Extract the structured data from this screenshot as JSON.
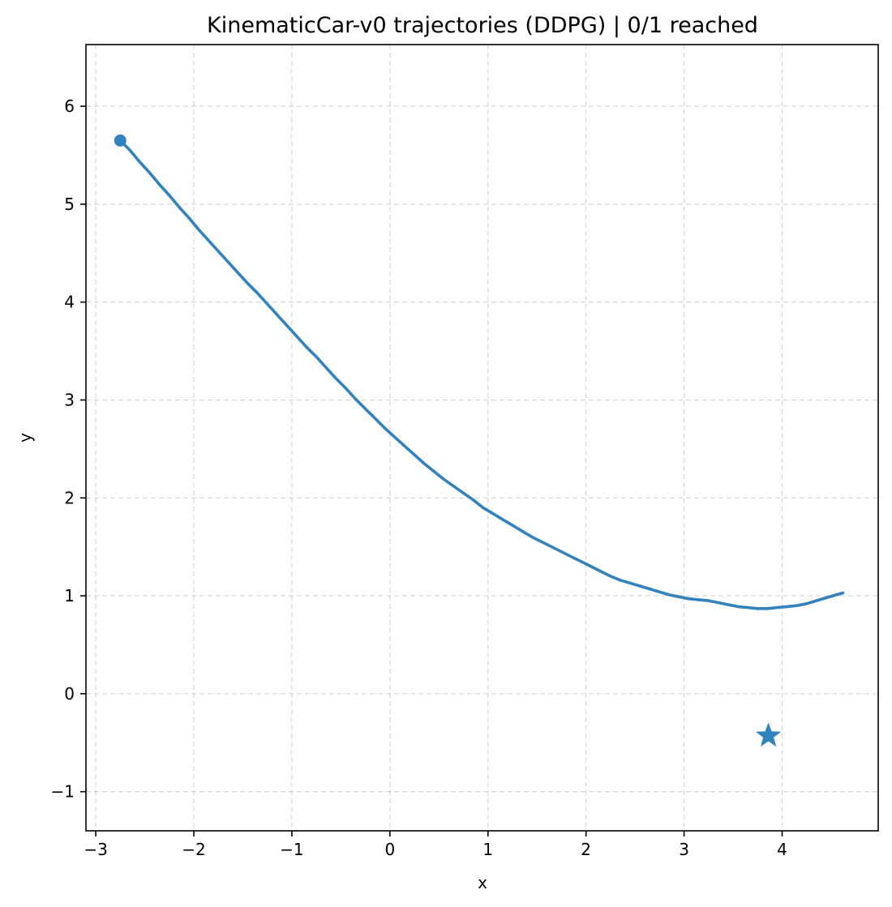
{
  "chart_data": {
    "type": "line",
    "title": "KinematicCar-v0 trajectories (DDPG) | 0/1 reached",
    "xlabel": "x",
    "ylabel": "y",
    "xlim": [
      -3.1,
      4.98
    ],
    "ylim": [
      -1.4,
      6.63
    ],
    "xticks": [
      -3,
      -2,
      -1,
      0,
      1,
      2,
      3,
      4
    ],
    "yticks": [
      -1,
      0,
      1,
      2,
      3,
      4,
      5,
      6
    ],
    "xtick_labels": [
      "−3",
      "−2",
      "−1",
      "0",
      "1",
      "2",
      "3",
      "4"
    ],
    "ytick_labels": [
      "−1",
      "0",
      "1",
      "2",
      "3",
      "4",
      "5",
      "6"
    ],
    "grid": true,
    "colors": {
      "trajectory": "#3182bd"
    },
    "series": [
      {
        "x": [
          -2.75,
          -2.65,
          -2.55,
          -2.45,
          -2.35,
          -2.25,
          -2.15,
          -2.05,
          -1.95,
          -1.85,
          -1.75,
          -1.65,
          -1.55,
          -1.45,
          -1.35,
          -1.25,
          -1.15,
          -1.05,
          -0.95,
          -0.85,
          -0.75,
          -0.65,
          -0.55,
          -0.45,
          -0.35,
          -0.25,
          -0.15,
          -0.05,
          0.05,
          0.15,
          0.25,
          0.35,
          0.45,
          0.55,
          0.65,
          0.75,
          0.85,
          0.95,
          1.05,
          1.15,
          1.25,
          1.35,
          1.45,
          1.55,
          1.65,
          1.75,
          1.85,
          1.95,
          2.05,
          2.15,
          2.25,
          2.35,
          2.45,
          2.55,
          2.65,
          2.75,
          2.85,
          2.95,
          3.05,
          3.15,
          3.25,
          3.35,
          3.45,
          3.55,
          3.65,
          3.75,
          3.85,
          3.95,
          4.05,
          4.15,
          4.25,
          4.35,
          4.45,
          4.55,
          4.62
        ],
        "y": [
          5.65,
          5.55,
          5.43,
          5.32,
          5.2,
          5.09,
          4.97,
          4.86,
          4.74,
          4.63,
          4.52,
          4.41,
          4.3,
          4.19,
          4.09,
          3.98,
          3.87,
          3.76,
          3.65,
          3.54,
          3.44,
          3.33,
          3.22,
          3.12,
          3.01,
          2.91,
          2.81,
          2.71,
          2.62,
          2.53,
          2.44,
          2.35,
          2.27,
          2.19,
          2.12,
          2.05,
          1.98,
          1.9,
          1.84,
          1.78,
          1.72,
          1.66,
          1.6,
          1.55,
          1.5,
          1.45,
          1.4,
          1.35,
          1.3,
          1.25,
          1.2,
          1.16,
          1.13,
          1.1,
          1.07,
          1.04,
          1.01,
          0.99,
          0.97,
          0.96,
          0.95,
          0.93,
          0.91,
          0.89,
          0.88,
          0.87,
          0.87,
          0.88,
          0.89,
          0.9,
          0.92,
          0.95,
          0.98,
          1.01,
          1.03
        ]
      }
    ],
    "start_point": {
      "x": -2.75,
      "y": 5.65,
      "marker": "circle"
    },
    "goal_point": {
      "x": 3.86,
      "y": -0.43,
      "marker": "star"
    }
  }
}
